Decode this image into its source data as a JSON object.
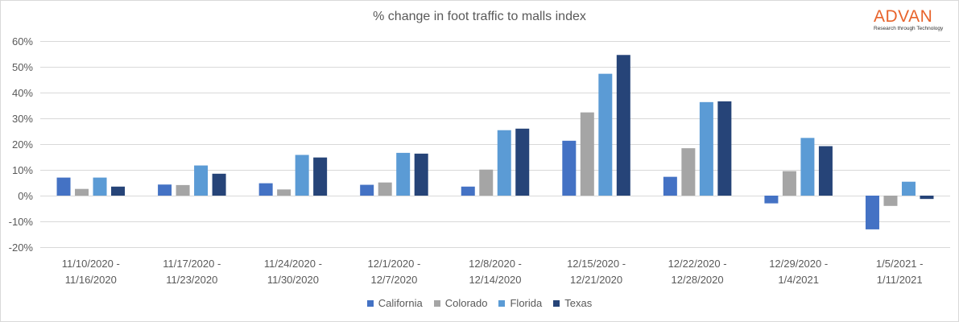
{
  "logo": {
    "name": "ADVAN",
    "tagline": "Research through Technology"
  },
  "colors": {
    "california": "#4472c4",
    "colorado": "#a5a5a5",
    "florida": "#5b9bd5",
    "texas": "#264478",
    "grid": "#d9d9d9",
    "logo": "#e8632b"
  },
  "chart_data": {
    "type": "bar",
    "title": "% change in foot traffic to malls index",
    "xlabel": "",
    "ylabel": "",
    "ylim": [
      -20,
      60
    ],
    "yticks": [
      "60%",
      "50%",
      "40%",
      "30%",
      "20%",
      "10%",
      "0%",
      "-10%",
      "-20%"
    ],
    "ytick_values": [
      60,
      50,
      40,
      30,
      20,
      10,
      0,
      -10,
      -20
    ],
    "grid": true,
    "legend_position": "bottom",
    "categories": [
      [
        "11/10/2020 -",
        "11/16/2020"
      ],
      [
        "11/17/2020 -",
        "11/23/2020"
      ],
      [
        "11/24/2020 -",
        "11/30/2020"
      ],
      [
        "12/1/2020 -",
        "12/7/2020"
      ],
      [
        "12/8/2020 -",
        "12/14/2020"
      ],
      [
        "12/15/2020 -",
        "12/21/2020"
      ],
      [
        "12/22/2020 -",
        "12/28/2020"
      ],
      [
        "12/29/2020 -",
        "1/4/2021"
      ],
      [
        "1/5/2021 -",
        "1/11/2021"
      ]
    ],
    "series": [
      {
        "name": "California",
        "color": "#4472c4",
        "values": [
          7.0,
          4.3,
          4.8,
          4.2,
          3.5,
          21.3,
          7.3,
          -3.0,
          -13.1
        ]
      },
      {
        "name": "Colorado",
        "color": "#a5a5a5",
        "values": [
          2.6,
          4.1,
          2.4,
          5.1,
          10.1,
          32.3,
          18.4,
          9.5,
          -4.0
        ]
      },
      {
        "name": "Florida",
        "color": "#5b9bd5",
        "values": [
          7.0,
          11.7,
          15.8,
          16.6,
          25.4,
          47.3,
          36.3,
          22.4,
          5.4
        ]
      },
      {
        "name": "Texas",
        "color": "#264478",
        "values": [
          3.5,
          8.5,
          14.8,
          16.3,
          26.0,
          54.6,
          36.6,
          19.2,
          -1.3
        ]
      }
    ]
  }
}
